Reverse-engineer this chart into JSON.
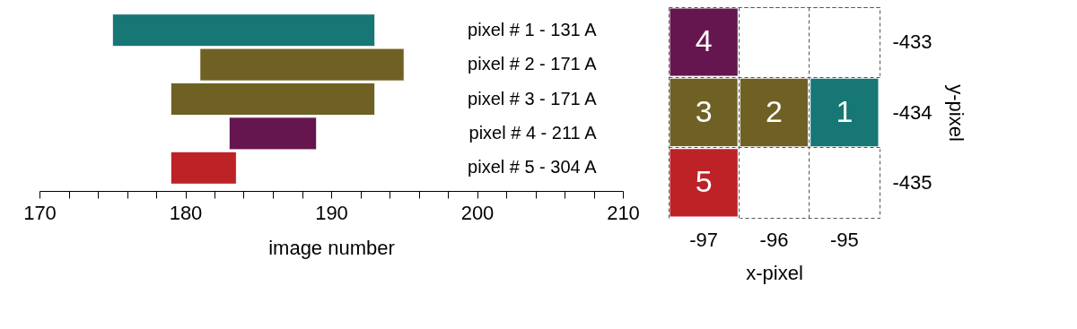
{
  "chart_data": [
    {
      "type": "bar",
      "orientation": "horizontal",
      "xlabel": "image number",
      "categories": [
        "pixel # 1 - 131 A",
        "pixel # 2 - 171 A",
        "pixel # 3 - 171 A",
        "pixel # 4 - 211 A",
        "pixel # 5 - 304 A"
      ],
      "base": [
        175,
        181,
        179,
        183,
        179
      ],
      "values": [
        18,
        14,
        14,
        6,
        4.5
      ],
      "colors": [
        "#167775",
        "#6f6124",
        "#6f6124",
        "#66164f",
        "#bd2227"
      ],
      "xlim": [
        170,
        210
      ],
      "xticks": [
        170,
        {
          "value": 172,
          "label": null
        },
        {
          "value": 174,
          "label": null
        },
        {
          "value": 176,
          "label": null
        },
        {
          "value": 178,
          "label": null
        },
        180,
        {
          "value": 182,
          "label": null
        },
        {
          "value": 184,
          "label": null
        },
        {
          "value": 186,
          "label": null
        },
        {
          "value": 188,
          "label": null
        },
        190,
        {
          "value": 192,
          "label": null
        },
        {
          "value": 194,
          "label": null
        },
        {
          "value": 196,
          "label": null
        },
        {
          "value": 198,
          "label": null
        },
        200,
        {
          "value": 202,
          "label": null
        },
        {
          "value": 204,
          "label": null
        },
        {
          "value": 206,
          "label": null
        },
        {
          "value": 208,
          "label": null
        },
        210
      ],
      "grid": false
    },
    {
      "type": "heatmap",
      "xlabel": "x-pixel",
      "ylabel": "y-pixel",
      "categories": [
        "-97",
        "-96",
        "-95"
      ],
      "y_categories": [
        "-433",
        "-434",
        "-435"
      ],
      "cells": [
        [
          4,
          null,
          null
        ],
        [
          3,
          2,
          1
        ],
        [
          5,
          null,
          null
        ]
      ],
      "colors": [
        [
          "#66164f",
          null,
          null
        ],
        [
          "#6f6124",
          "#6f6124",
          "#167775"
        ],
        [
          "#bd2227",
          null,
          null
        ]
      ],
      "data_labels": true,
      "grid": true
    }
  ]
}
